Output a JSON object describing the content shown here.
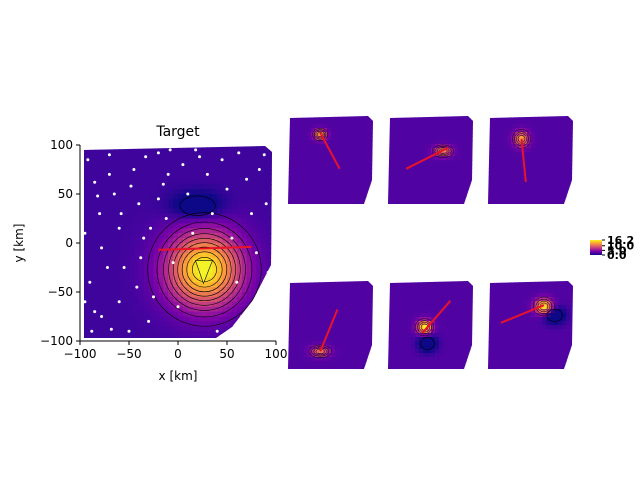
{
  "chart_data": [
    {
      "type": "heatmap",
      "panel": "main",
      "title": "Target",
      "xlabel": "x [km]",
      "ylabel": "y [km]",
      "xlim": [
        -100,
        100
      ],
      "ylim": [
        -100,
        100
      ],
      "xticks": [
        -100,
        -50,
        0,
        50,
        100
      ],
      "yticks": [
        -100,
        -50,
        0,
        50,
        100
      ],
      "grid": false,
      "colormap": "plasma",
      "peak": {
        "x": 27,
        "y": -27,
        "sx": 27,
        "sy": 27,
        "amp": 1.0
      },
      "secondary": {
        "x": 20,
        "y": 38,
        "sx": 18,
        "sy": 10,
        "amp": -0.25
      },
      "line": {
        "x": [
          -20,
          75
        ],
        "y": [
          -7,
          -4
        ],
        "color": "#e8132a"
      },
      "stations": [
        [
          -92,
          85
        ],
        [
          -85,
          62
        ],
        [
          -80,
          30
        ],
        [
          -78,
          -5
        ],
        [
          -90,
          -40
        ],
        [
          -85,
          -70
        ],
        [
          -70,
          90
        ],
        [
          -65,
          50
        ],
        [
          -60,
          15
        ],
        [
          -55,
          -25
        ],
        [
          -60,
          -60
        ],
        [
          -68,
          -88
        ],
        [
          -45,
          75
        ],
        [
          -40,
          40
        ],
        [
          -35,
          5
        ],
        [
          -42,
          -45
        ],
        [
          -30,
          -80
        ],
        [
          -20,
          92
        ],
        [
          -15,
          60
        ],
        [
          -12,
          25
        ],
        [
          -5,
          -20
        ],
        [
          0,
          -65
        ],
        [
          5,
          80
        ],
        [
          10,
          50
        ],
        [
          15,
          10
        ],
        [
          30,
          70
        ],
        [
          35,
          30
        ],
        [
          45,
          85
        ],
        [
          50,
          55
        ],
        [
          55,
          5
        ],
        [
          60,
          -40
        ],
        [
          65,
          -75
        ],
        [
          70,
          65
        ],
        [
          75,
          30
        ],
        [
          80,
          -10
        ],
        [
          85,
          -55
        ],
        [
          88,
          90
        ],
        [
          -95,
          10
        ],
        [
          -50,
          -90
        ],
        [
          40,
          -90
        ],
        [
          -25,
          -55
        ],
        [
          -72,
          -25
        ],
        [
          -88,
          -90
        ],
        [
          62,
          92
        ],
        [
          -33,
          88
        ],
        [
          -8,
          95
        ],
        [
          22,
          88
        ],
        [
          83,
          75
        ],
        [
          90,
          40
        ],
        [
          92,
          -30
        ],
        [
          78,
          -85
        ],
        [
          -58,
          30
        ],
        [
          -48,
          58
        ],
        [
          -20,
          45
        ],
        [
          -70,
          70
        ],
        [
          -82,
          48
        ],
        [
          -38,
          -15
        ],
        [
          -28,
          15
        ],
        [
          -10,
          70
        ],
        [
          18,
          95
        ],
        [
          -95,
          -60
        ],
        [
          -78,
          -75
        ]
      ],
      "colorbar": {
        "ticks": [
          "16.2",
          "10.0",
          "5.0",
          "0.0"
        ],
        "min": 0.0,
        "max": 16.2
      }
    },
    {
      "type": "heatmap",
      "panel": "small-1",
      "blob": {
        "x": -25,
        "y": 58,
        "sx": 10,
        "sy": 8,
        "amp": 0.8
      },
      "line": {
        "x": [
          -25,
          20
        ],
        "y": [
          62,
          -20
        ],
        "color": "#e8132a"
      }
    },
    {
      "type": "heatmap",
      "panel": "small-2",
      "blob": {
        "x": 28,
        "y": 20,
        "sx": 14,
        "sy": 8,
        "amp": 0.7
      },
      "line": {
        "x": [
          -58,
          40
        ],
        "y": [
          -20,
          28
        ],
        "color": "#e8132a"
      }
    },
    {
      "type": "heatmap",
      "panel": "small-3",
      "blob": {
        "x": -22,
        "y": 48,
        "sx": 12,
        "sy": 12,
        "amp": 0.75
      },
      "line": {
        "x": [
          -22,
          -12
        ],
        "y": [
          48,
          -50
        ],
        "color": "#e8132a"
      }
    },
    {
      "type": "heatmap",
      "panel": "small-4",
      "blob": {
        "x": -25,
        "y": -60,
        "sx": 15,
        "sy": 8,
        "amp": 0.6
      },
      "line": {
        "x": [
          -25,
          15
        ],
        "y": [
          -60,
          35
        ],
        "color": "#e8132a"
      }
    },
    {
      "type": "heatmap",
      "panel": "small-5",
      "blob": {
        "x": -15,
        "y": -5,
        "sx": 12,
        "sy": 11,
        "amp": 1.0
      },
      "dark": {
        "x": -8,
        "y": -42,
        "sx": 16,
        "sy": 14,
        "amp": -0.3
      },
      "line": {
        "x": [
          -20,
          45
        ],
        "y": [
          -18,
          55
        ],
        "color": "#e8132a"
      }
    },
    {
      "type": "heatmap",
      "panel": "small-6",
      "blob": {
        "x": 30,
        "y": 42,
        "sx": 14,
        "sy": 12,
        "amp": 1.0
      },
      "dark": {
        "x": 55,
        "y": 22,
        "sx": 18,
        "sy": 14,
        "amp": -0.3
      },
      "line": {
        "x": [
          -70,
          30
        ],
        "y": [
          5,
          45
        ],
        "color": "#e8132a"
      }
    }
  ]
}
